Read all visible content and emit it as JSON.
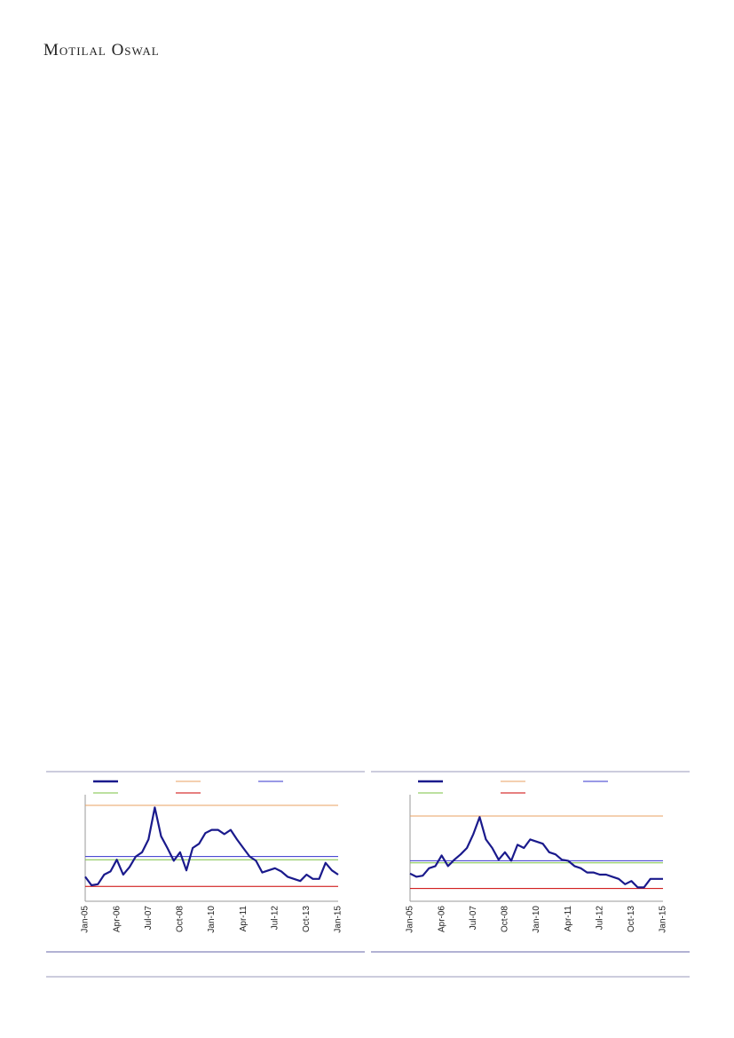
{
  "header": {
    "brand": "Motilal Oswal"
  },
  "chart_data": [
    {
      "type": "line",
      "categories": [
        "Jan-05",
        null,
        null,
        null,
        null,
        "Apr-06",
        null,
        null,
        null,
        null,
        "Jul-07",
        null,
        null,
        null,
        null,
        "Oct-08",
        null,
        null,
        null,
        null,
        "Jan-10",
        null,
        null,
        null,
        null,
        "Apr-11",
        null,
        null,
        null,
        null,
        "Jul-12",
        null,
        null,
        null,
        null,
        "Oct-13",
        null,
        null,
        null,
        null,
        "Jan-15"
      ],
      "series": [
        {
          "color": "#1a1a8c",
          "values": [
            23,
            15,
            16,
            25,
            28,
            39,
            25,
            32,
            42,
            46,
            58,
            88,
            61,
            50,
            38,
            46,
            29,
            50,
            54,
            64,
            67,
            67,
            63,
            67,
            58,
            50,
            42,
            38,
            27,
            29,
            31,
            28,
            23,
            21,
            19,
            25,
            21,
            21,
            36,
            29,
            25
          ]
        }
      ],
      "hlines": [
        {
          "value": 90,
          "color": "#e8a060"
        },
        {
          "value": 42,
          "color": "#3333cc"
        },
        {
          "value": 39,
          "color": "#7ac142"
        },
        {
          "value": 14,
          "color": "#cc0000"
        }
      ],
      "ylim": [
        0,
        100
      ]
    },
    {
      "type": "line",
      "categories": [
        "Jan-05",
        null,
        null,
        null,
        null,
        "Apr-06",
        null,
        null,
        null,
        null,
        "Jul-07",
        null,
        null,
        null,
        null,
        "Oct-08",
        null,
        null,
        null,
        null,
        "Jan-10",
        null,
        null,
        null,
        null,
        "Apr-11",
        null,
        null,
        null,
        null,
        "Jul-12",
        null,
        null,
        null,
        null,
        "Oct-13",
        null,
        null,
        null,
        null,
        "Jan-15"
      ],
      "series": [
        {
          "color": "#1a1a8c",
          "values": [
            26,
            23,
            24,
            31,
            33,
            43,
            33,
            39,
            44,
            50,
            63,
            79,
            58,
            50,
            39,
            46,
            38,
            53,
            50,
            58,
            56,
            54,
            46,
            44,
            39,
            38,
            33,
            31,
            27,
            27,
            25,
            25,
            23,
            21,
            16,
            19,
            13,
            13,
            21,
            21,
            21
          ]
        }
      ],
      "hlines": [
        {
          "value": 80,
          "color": "#e8a060"
        },
        {
          "value": 38,
          "color": "#3333cc"
        },
        {
          "value": 36,
          "color": "#7ac142"
        },
        {
          "value": 12,
          "color": "#cc0000"
        }
      ],
      "ylim": [
        0,
        100
      ]
    }
  ]
}
